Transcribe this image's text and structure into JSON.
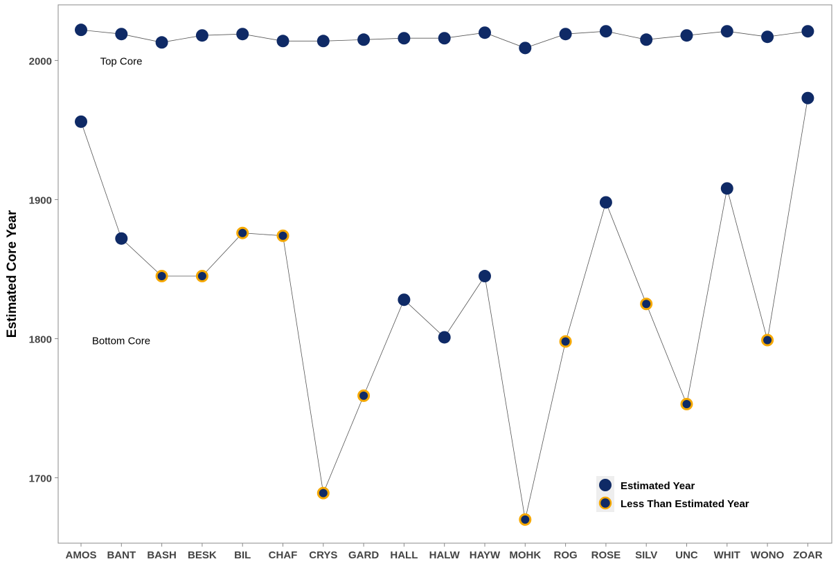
{
  "chart_data": {
    "type": "scatter",
    "title": "",
    "xlabel": "",
    "ylabel": "Estimated Core Year",
    "categories": [
      "AMOS",
      "BANT",
      "BASH",
      "BESK",
      "BIL",
      "CHAF",
      "CRYS",
      "GARD",
      "HALL",
      "HALW",
      "HAYW",
      "MOHK",
      "ROG",
      "ROSE",
      "SILV",
      "UNC",
      "WHIT",
      "WONO",
      "ZOAR"
    ],
    "ylim": [
      1653,
      2040
    ],
    "yticks": [
      1700,
      1800,
      1900,
      2000
    ],
    "grid": false,
    "legend_position": "bottom-right",
    "colors": {
      "point_fill": "#0f2a66",
      "highlight_ring": "#f5a800",
      "line": "#555555",
      "axis": "#888888"
    },
    "series": [
      {
        "name": "Top Core",
        "values": [
          2022,
          2019,
          2013,
          2018,
          2019,
          2014,
          2014,
          2015,
          2016,
          2016,
          2020,
          2009,
          2019,
          2021,
          2015,
          2018,
          2021,
          2017,
          2021
        ],
        "less_than_estimated": [
          false,
          false,
          false,
          false,
          false,
          false,
          false,
          false,
          false,
          false,
          false,
          false,
          false,
          false,
          false,
          false,
          false,
          false,
          false
        ]
      },
      {
        "name": "Bottom Core",
        "values": [
          1956,
          1872,
          1845,
          1845,
          1876,
          1874,
          1689,
          1759,
          1828,
          1801,
          1845,
          1670,
          1798,
          1898,
          1825,
          1753,
          1908,
          1799,
          1973
        ],
        "less_than_estimated": [
          false,
          false,
          true,
          true,
          true,
          true,
          true,
          true,
          false,
          false,
          false,
          true,
          true,
          false,
          true,
          true,
          false,
          true,
          false
        ]
      }
    ],
    "annotations": [
      {
        "text": "Top Core",
        "category": "AMOS",
        "y": 2000
      },
      {
        "text": "Bottom Core",
        "category": "AMOS",
        "y": 1799
      }
    ],
    "legend": [
      {
        "label": "Estimated Year",
        "marker": "filled"
      },
      {
        "label": "Less Than Estimated Year",
        "marker": "ringed"
      }
    ]
  }
}
